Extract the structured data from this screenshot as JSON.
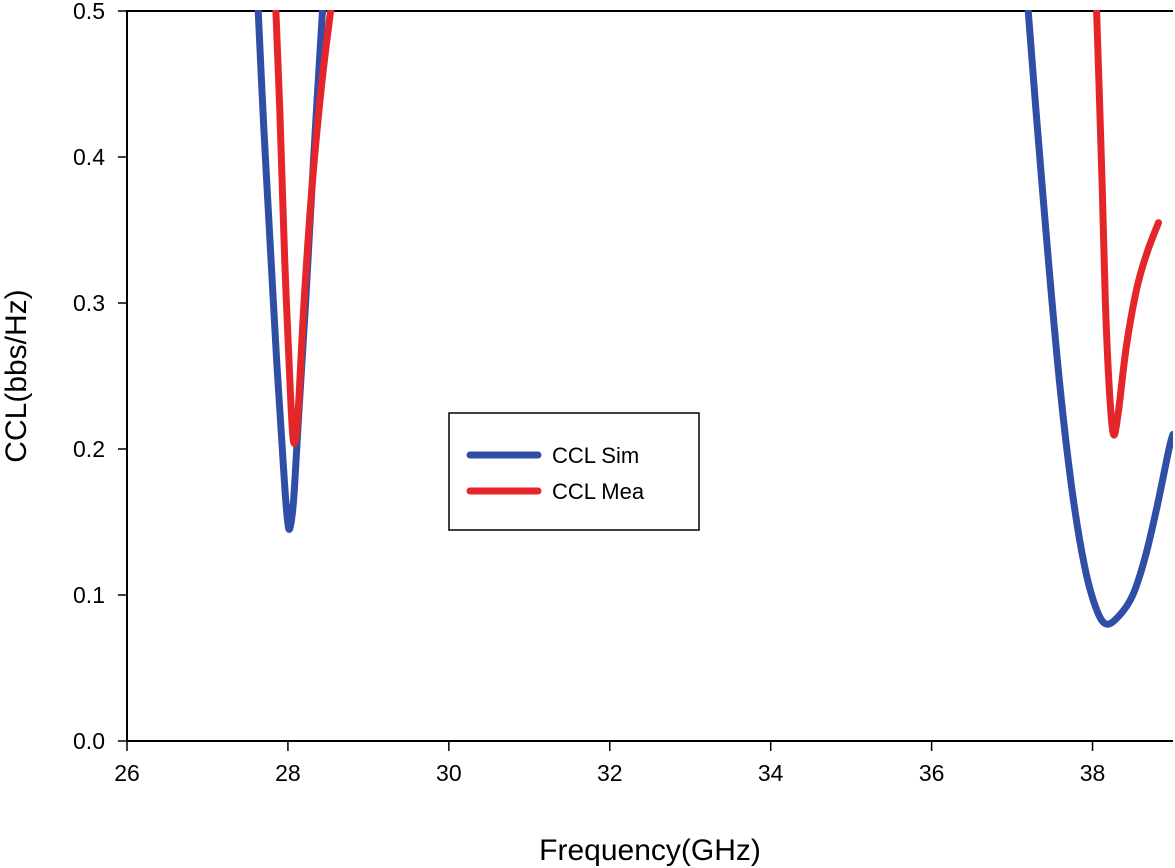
{
  "chart_data": {
    "type": "line",
    "title": "",
    "xlabel": "Frequency(GHz)",
    "ylabel": "CCL(bbs/Hz)",
    "xlim": [
      26,
      39
    ],
    "ylim": [
      0.0,
      0.5
    ],
    "xticks": [
      26,
      28,
      30,
      32,
      34,
      36,
      38
    ],
    "xtick_labels": [
      "26",
      "28",
      "30",
      "32",
      "34",
      "36",
      "38"
    ],
    "yticks": [
      0.0,
      0.1,
      0.2,
      0.3,
      0.4,
      0.5
    ],
    "ytick_labels": [
      "0.0",
      "0.1",
      "0.2",
      "0.3",
      "0.4",
      "0.5"
    ],
    "grid": false,
    "legend_position": "center",
    "series": [
      {
        "name": "CCL Sim",
        "color": "#2f4fa6",
        "segments": [
          [
            [
              27.63,
              0.5
            ],
            [
              27.7,
              0.42
            ],
            [
              27.78,
              0.34
            ],
            [
              27.86,
              0.26
            ],
            [
              27.93,
              0.2
            ],
            [
              27.98,
              0.16
            ],
            [
              28.02,
              0.145
            ],
            [
              28.07,
              0.165
            ],
            [
              28.13,
              0.22
            ],
            [
              28.22,
              0.3
            ],
            [
              28.32,
              0.4
            ],
            [
              28.43,
              0.5
            ]
          ],
          [
            [
              37.2,
              0.5
            ],
            [
              37.3,
              0.43
            ],
            [
              37.45,
              0.33
            ],
            [
              37.6,
              0.24
            ],
            [
              37.75,
              0.17
            ],
            [
              37.9,
              0.12
            ],
            [
              38.05,
              0.09
            ],
            [
              38.18,
              0.08
            ],
            [
              38.35,
              0.087
            ],
            [
              38.5,
              0.1
            ],
            [
              38.65,
              0.125
            ],
            [
              38.8,
              0.16
            ],
            [
              38.95,
              0.2
            ],
            [
              39.0,
              0.21
            ]
          ]
        ]
      },
      {
        "name": "CCL Mea",
        "color": "#e4262b",
        "segments": [
          [
            [
              27.85,
              0.5
            ],
            [
              27.9,
              0.43
            ],
            [
              27.96,
              0.33
            ],
            [
              28.03,
              0.24
            ],
            [
              28.07,
              0.205
            ],
            [
              28.12,
              0.22
            ],
            [
              28.2,
              0.3
            ],
            [
              28.3,
              0.38
            ],
            [
              28.42,
              0.45
            ],
            [
              28.53,
              0.5
            ]
          ],
          [
            [
              38.05,
              0.5
            ],
            [
              38.08,
              0.45
            ],
            [
              38.12,
              0.38
            ],
            [
              38.16,
              0.3
            ],
            [
              38.21,
              0.24
            ],
            [
              38.26,
              0.21
            ],
            [
              38.32,
              0.225
            ],
            [
              38.42,
              0.27
            ],
            [
              38.55,
              0.31
            ],
            [
              38.68,
              0.335
            ],
            [
              38.82,
              0.355
            ]
          ]
        ]
      }
    ]
  }
}
